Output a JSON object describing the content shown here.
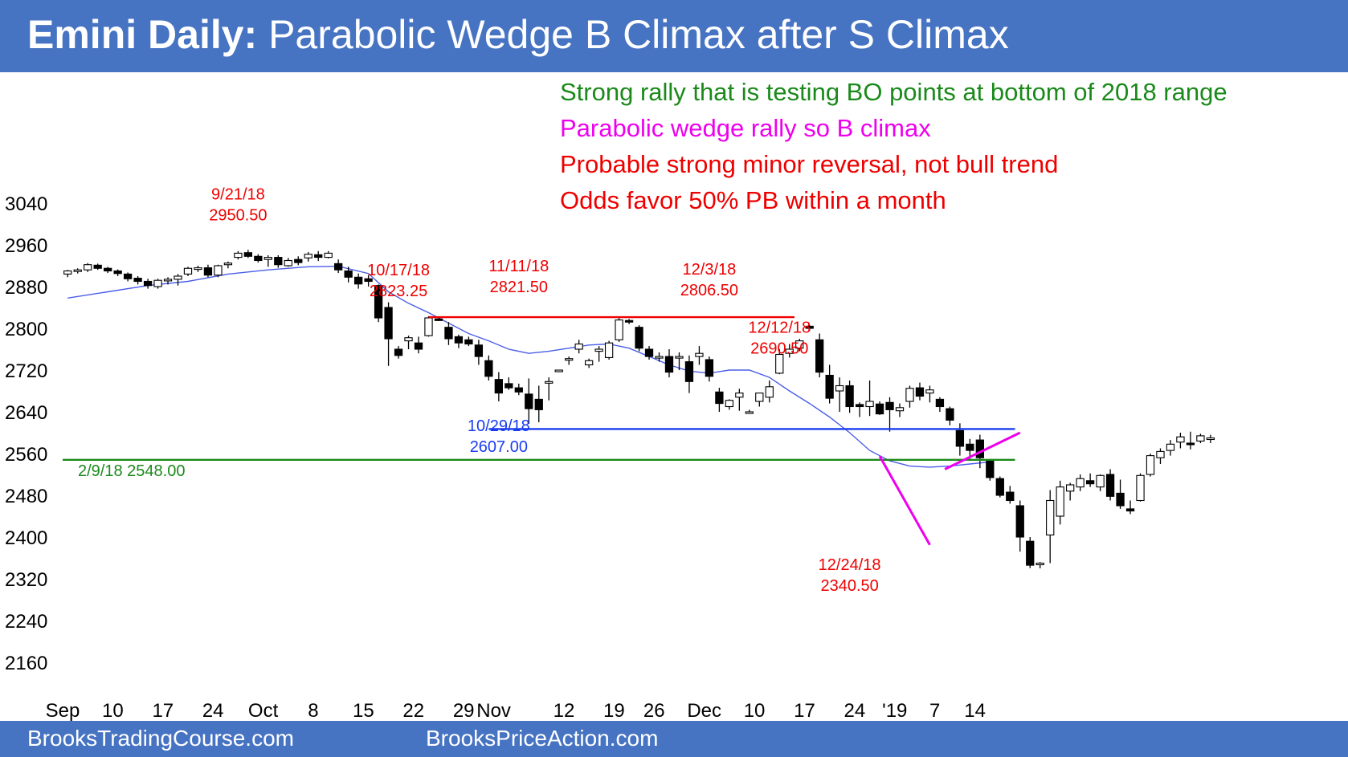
{
  "header": {
    "title_bold": "Emini Daily:",
    "title_rest": " Parabolic Wedge B Climax after S Climax"
  },
  "notes": [
    {
      "text": "Strong rally that is testing BO points at bottom of 2018 range",
      "color": "#1a8a1a"
    },
    {
      "text": "Parabolic wedge rally so B climax",
      "color": "#ee00ee"
    },
    {
      "text": "Probable strong minor reversal, not bull trend",
      "color": "#ee0000"
    },
    {
      "text": "Odds favor 50% PB within a month",
      "color": "#ee0000"
    }
  ],
  "footer": {
    "left": "BrooksTradingCourse.com",
    "right": "BrooksPriceAction.com"
  },
  "chart_data": {
    "type": "candlestick",
    "title": "Emini Daily",
    "ylim": [
      2160,
      3040
    ],
    "yticks": [
      3040,
      2960,
      2880,
      2800,
      2720,
      2640,
      2560,
      2480,
      2400,
      2320,
      2240,
      2160
    ],
    "ytick_labels": [
      "3040",
      "2960",
      "2880",
      "2800",
      "2720",
      "2640",
      "2560",
      "2480",
      "2400",
      "2320",
      "2240",
      "2160"
    ],
    "xtick_labels": [
      {
        "label": "Sep",
        "bar": -0.5
      },
      {
        "label": "10",
        "bar": 4.5
      },
      {
        "label": "17",
        "bar": 9.5
      },
      {
        "label": "24",
        "bar": 14.5
      },
      {
        "label": "Oct",
        "bar": 19.5
      },
      {
        "label": "8",
        "bar": 24.5
      },
      {
        "label": "15",
        "bar": 29.5
      },
      {
        "label": "22",
        "bar": 34.5
      },
      {
        "label": "29",
        "bar": 39.5
      },
      {
        "label": "Nov",
        "bar": 42.5
      },
      {
        "label": "12",
        "bar": 49.5
      },
      {
        "label": "19",
        "bar": 54.5
      },
      {
        "label": "26",
        "bar": 58.5
      },
      {
        "label": "Dec",
        "bar": 63.5
      },
      {
        "label": "10",
        "bar": 68.5
      },
      {
        "label": "17",
        "bar": 73.5
      },
      {
        "label": "24",
        "bar": 78.5
      },
      {
        "label": "'19",
        "bar": 82.5
      },
      {
        "label": "7",
        "bar": 86.5
      },
      {
        "label": "14",
        "bar": 90.5
      }
    ],
    "candles": [
      [
        2904,
        2912,
        2898,
        2910
      ],
      [
        2910,
        2915,
        2905,
        2912
      ],
      [
        2912,
        2925,
        2908,
        2922
      ],
      [
        2921,
        2924,
        2912,
        2915
      ],
      [
        2915,
        2918,
        2906,
        2910
      ],
      [
        2910,
        2913,
        2900,
        2905
      ],
      [
        2904,
        2907,
        2890,
        2895
      ],
      [
        2896,
        2900,
        2884,
        2890
      ],
      [
        2890,
        2895,
        2876,
        2882
      ],
      [
        2880,
        2895,
        2876,
        2892
      ],
      [
        2891,
        2898,
        2884,
        2894
      ],
      [
        2894,
        2904,
        2882,
        2900
      ],
      [
        2904,
        2918,
        2900,
        2915
      ],
      [
        2915,
        2920,
        2908,
        2916
      ],
      [
        2916,
        2922,
        2898,
        2902
      ],
      [
        2902,
        2922,
        2898,
        2920
      ],
      [
        2922,
        2928,
        2915,
        2925
      ],
      [
        2936,
        2948,
        2932,
        2944
      ],
      [
        2945,
        2950.5,
        2935,
        2938
      ],
      [
        2938,
        2942,
        2926,
        2930
      ],
      [
        2932,
        2940,
        2918,
        2936
      ],
      [
        2936,
        2940,
        2916,
        2922
      ],
      [
        2920,
        2935,
        2918,
        2930
      ],
      [
        2932,
        2938,
        2921,
        2926
      ],
      [
        2935,
        2946,
        2928,
        2942
      ],
      [
        2941,
        2948,
        2929,
        2936
      ],
      [
        2936,
        2948,
        2934,
        2944
      ],
      [
        2924,
        2932,
        2906,
        2912
      ],
      [
        2910,
        2918,
        2888,
        2898
      ],
      [
        2898,
        2905,
        2876,
        2885
      ],
      [
        2895,
        2902,
        2880,
        2890
      ],
      [
        2882,
        2884,
        2812,
        2820
      ],
      [
        2840,
        2850,
        2728,
        2780
      ],
      [
        2760,
        2766,
        2742,
        2748
      ],
      [
        2776,
        2786,
        2760,
        2782
      ],
      [
        2772,
        2784,
        2752,
        2760
      ],
      [
        2786,
        2823.25,
        2784,
        2820
      ],
      [
        2818,
        2823,
        2814,
        2816
      ],
      [
        2802,
        2812,
        2768,
        2780
      ],
      [
        2784,
        2788,
        2762,
        2772
      ],
      [
        2778,
        2784,
        2766,
        2770
      ],
      [
        2768,
        2778,
        2730,
        2746
      ],
      [
        2738,
        2748,
        2700,
        2708
      ],
      [
        2702,
        2716,
        2660,
        2676
      ],
      [
        2694,
        2706,
        2682,
        2686
      ],
      [
        2686,
        2694,
        2672,
        2678
      ],
      [
        2674,
        2704,
        2617,
        2646
      ],
      [
        2664,
        2690,
        2620,
        2644
      ],
      [
        2696,
        2706,
        2662,
        2698
      ],
      [
        2717,
        2720,
        2716,
        2720
      ],
      [
        2740,
        2746,
        2730,
        2742
      ],
      [
        2760,
        2778,
        2752,
        2770
      ],
      [
        2730,
        2742,
        2724,
        2738
      ],
      [
        2756,
        2766,
        2736,
        2760
      ],
      [
        2744,
        2776,
        2740,
        2772
      ],
      [
        2778,
        2821.5,
        2774,
        2816
      ],
      [
        2815,
        2818,
        2808,
        2813
      ],
      [
        2802,
        2806,
        2756,
        2762
      ],
      [
        2760,
        2766,
        2740,
        2746
      ],
      [
        2746,
        2754,
        2736,
        2746
      ],
      [
        2746,
        2760,
        2706,
        2716
      ],
      [
        2746,
        2754,
        2720,
        2746
      ],
      [
        2736,
        2748,
        2676,
        2698
      ],
      [
        2746,
        2766,
        2730,
        2752
      ],
      [
        2740,
        2746,
        2698,
        2708
      ],
      [
        2678,
        2686,
        2640,
        2656
      ],
      [
        2650,
        2664,
        2644,
        2662
      ],
      [
        2668,
        2684,
        2642,
        2676
      ],
      [
        2640,
        2644,
        2636,
        2640
      ],
      [
        2660,
        2674,
        2650,
        2676
      ],
      [
        2668,
        2700,
        2658,
        2688
      ],
      [
        2714,
        2760,
        2712,
        2750
      ],
      [
        2752,
        2770,
        2744,
        2760
      ],
      [
        2762,
        2780,
        2756,
        2776
      ],
      [
        2804,
        2806.5,
        2795,
        2800
      ],
      [
        2778,
        2790,
        2706,
        2716
      ],
      [
        2710,
        2730,
        2656,
        2666
      ],
      [
        2680,
        2706,
        2640,
        2690
      ],
      [
        2690,
        2700,
        2638,
        2650
      ],
      [
        2654,
        2658,
        2630,
        2650
      ],
      [
        2650,
        2700,
        2632,
        2660
      ],
      [
        2655,
        2660,
        2634,
        2636
      ],
      [
        2658,
        2668,
        2602,
        2644
      ],
      [
        2642,
        2656,
        2630,
        2648
      ],
      [
        2660,
        2690,
        2648,
        2685
      ],
      [
        2686,
        2696,
        2662,
        2670
      ],
      [
        2676,
        2690,
        2658,
        2682
      ],
      [
        2664,
        2668,
        2640,
        2650
      ],
      [
        2646,
        2650,
        2614,
        2624
      ],
      [
        2604,
        2618,
        2556,
        2574
      ],
      [
        2578,
        2588,
        2550,
        2566
      ],
      [
        2586,
        2596,
        2532,
        2552
      ],
      [
        2546,
        2548,
        2508,
        2514
      ],
      [
        2512,
        2516,
        2476,
        2480
      ],
      [
        2486,
        2498,
        2464,
        2470
      ],
      [
        2460,
        2470,
        2372,
        2400
      ],
      [
        2392,
        2400,
        2340.5,
        2346
      ],
      [
        2350,
        2352,
        2340,
        2350
      ],
      [
        2404,
        2490,
        2350,
        2470
      ],
      [
        2440,
        2508,
        2424,
        2496
      ],
      [
        2488,
        2504,
        2470,
        2500
      ],
      [
        2496,
        2520,
        2488,
        2512
      ],
      [
        2508,
        2522,
        2496,
        2502
      ],
      [
        2496,
        2520,
        2488,
        2518
      ],
      [
        2520,
        2530,
        2470,
        2478
      ],
      [
        2484,
        2510,
        2454,
        2460
      ],
      [
        2454,
        2470,
        2444,
        2450
      ],
      [
        2470,
        2522,
        2468,
        2518
      ],
      [
        2520,
        2560,
        2516,
        2556
      ],
      [
        2552,
        2570,
        2540,
        2564
      ],
      [
        2566,
        2586,
        2556,
        2578
      ],
      [
        2582,
        2600,
        2570,
        2592
      ],
      [
        2580,
        2602,
        2568,
        2578
      ],
      [
        2584,
        2598,
        2580,
        2594
      ],
      [
        2588,
        2596,
        2580,
        2590
      ]
    ],
    "moving_average": [
      [
        0,
        2858
      ],
      [
        4,
        2870
      ],
      [
        8,
        2882
      ],
      [
        12,
        2890
      ],
      [
        16,
        2904
      ],
      [
        20,
        2912
      ],
      [
        24,
        2918
      ],
      [
        27,
        2919
      ],
      [
        30,
        2905
      ],
      [
        32,
        2870
      ],
      [
        34,
        2848
      ],
      [
        36,
        2830
      ],
      [
        38,
        2810
      ],
      [
        40,
        2790
      ],
      [
        42,
        2776
      ],
      [
        44,
        2760
      ],
      [
        46,
        2752
      ],
      [
        48,
        2756
      ],
      [
        50,
        2762
      ],
      [
        52,
        2768
      ],
      [
        54,
        2770
      ],
      [
        56,
        2762
      ],
      [
        58,
        2746
      ],
      [
        60,
        2730
      ],
      [
        62,
        2718
      ],
      [
        64,
        2714
      ],
      [
        66,
        2720
      ],
      [
        68,
        2720
      ],
      [
        70,
        2706
      ],
      [
        72,
        2680
      ],
      [
        74,
        2656
      ],
      [
        76,
        2630
      ],
      [
        78,
        2600
      ],
      [
        80,
        2566
      ],
      [
        82,
        2546
      ],
      [
        84,
        2536
      ],
      [
        86,
        2534
      ],
      [
        88,
        2536
      ],
      [
        90,
        2540
      ],
      [
        92,
        2544
      ]
    ],
    "lines": [
      {
        "name": "resistance-line",
        "y": 2821.5,
        "from_bar": 36,
        "to_bar": 72.5,
        "color": "#ee0000"
      },
      {
        "name": "support-line",
        "y": 2607,
        "from_bar": 42,
        "to_bar": 94.5,
        "color": "#1a3cf0"
      },
      {
        "name": "breakout-line",
        "y": 2548,
        "from_bar": -0.5,
        "to_bar": 94.5,
        "color": "#1a8a1a"
      }
    ],
    "wedge_lines": [
      {
        "name": "sell-climax-line",
        "points": [
          [
            81,
            2555
          ],
          [
            86,
            2385
          ]
        ],
        "color": "#ee00ee"
      },
      {
        "name": "buy-climax-line",
        "points": [
          [
            87.5,
            2530
          ],
          [
            95,
            2600
          ]
        ],
        "color": "#ee00ee"
      }
    ],
    "annotations": [
      {
        "date": "9/21/18",
        "price": "2950.50",
        "bar": 17,
        "y_value": 3010,
        "color": "#ee0000"
      },
      {
        "date": "10/17/18",
        "price": "2823.25",
        "bar": 33,
        "y_value": 2865,
        "color": "#ee0000"
      },
      {
        "date": "11/11/18",
        "price": "2821.50",
        "bar": 45,
        "y_value": 2872,
        "color": "#ee0000"
      },
      {
        "date": "12/3/18",
        "price": "2806.50",
        "bar": 64,
        "y_value": 2866,
        "color": "#ee0000"
      },
      {
        "date": "12/12/18",
        "price": "2690.50",
        "bar": 71,
        "y_value": 2755,
        "color": "#ee0000"
      },
      {
        "date": "10/29/18",
        "price": "2607.00",
        "bar": 43,
        "y_value": 2566,
        "color": "#1a3cf0"
      },
      {
        "date": "12/24/18",
        "price": "2340.50",
        "bar": 78,
        "y_value": 2300,
        "color": "#ee0000"
      }
    ],
    "breakout_label": "2/9/18 2548.00"
  }
}
